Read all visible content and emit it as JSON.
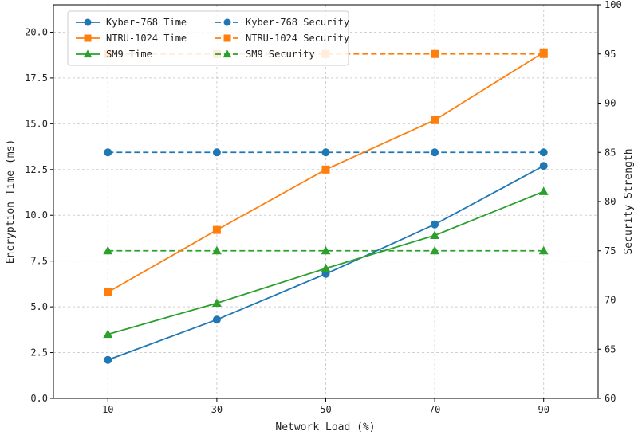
{
  "chart_data": {
    "type": "line",
    "xlabel": "Network Load (%)",
    "ylabel": "Encryption Time (ms)",
    "y2label": "Security Strength",
    "x": [
      10,
      30,
      50,
      70,
      90
    ],
    "xticks": [
      "10",
      "30",
      "50",
      "70",
      "90"
    ],
    "xlim": [
      0,
      100
    ],
    "ylim": [
      0,
      21.5
    ],
    "y2lim": [
      60,
      100
    ],
    "yticks": [
      "0.0",
      "2.5",
      "5.0",
      "7.5",
      "10.0",
      "12.5",
      "15.0",
      "17.5",
      "20.0"
    ],
    "y2ticks": [
      "60",
      "65",
      "70",
      "75",
      "80",
      "85",
      "90",
      "95",
      "100"
    ],
    "grid": true,
    "legend_position": "top-left",
    "series": [
      {
        "name": "Kyber-768 Time",
        "axis": "left",
        "style": "solid",
        "marker": "circle",
        "color": "#1f77b4",
        "values": [
          2.1,
          4.3,
          6.8,
          9.5,
          12.7
        ]
      },
      {
        "name": "NTRU-1024 Time",
        "axis": "left",
        "style": "solid",
        "marker": "square",
        "color": "#ff7f0e",
        "values": [
          5.8,
          9.2,
          12.5,
          15.2,
          18.9
        ]
      },
      {
        "name": "SM9 Time",
        "axis": "left",
        "style": "solid",
        "marker": "triangle",
        "color": "#2ca02c",
        "values": [
          3.5,
          5.2,
          7.1,
          8.9,
          11.3
        ]
      },
      {
        "name": "Kyber-768 Security",
        "axis": "right",
        "style": "dashed",
        "marker": "circle",
        "color": "#1f77b4",
        "values": [
          85,
          85,
          85,
          85,
          85
        ]
      },
      {
        "name": "NTRU-1024 Security",
        "axis": "right",
        "style": "dashed",
        "marker": "square",
        "color": "#ff7f0e",
        "values": [
          95,
          95,
          95,
          95,
          95
        ]
      },
      {
        "name": "SM9 Security",
        "axis": "right",
        "style": "dashed",
        "marker": "triangle",
        "color": "#2ca02c",
        "values": [
          75,
          75,
          75,
          75,
          75
        ]
      }
    ]
  }
}
